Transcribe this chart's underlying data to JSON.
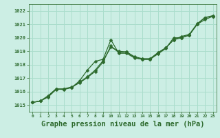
{
  "bg_color": "#cceee4",
  "grid_color": "#aaddcc",
  "line_color": "#2d6a2d",
  "marker_color": "#2d6a2d",
  "xlabel": "Graphe pression niveau de la mer (hPa)",
  "xlabel_fontsize": 7.5,
  "ylim": [
    1014.5,
    1022.5
  ],
  "xlim": [
    -0.5,
    23.5
  ],
  "yticks": [
    1015,
    1016,
    1017,
    1018,
    1019,
    1020,
    1021,
    1022
  ],
  "xticks": [
    0,
    1,
    2,
    3,
    4,
    5,
    6,
    7,
    8,
    9,
    10,
    11,
    12,
    13,
    14,
    15,
    16,
    17,
    18,
    19,
    20,
    21,
    22,
    23
  ],
  "series1_x": [
    0,
    1,
    2,
    3,
    4,
    5,
    6,
    7,
    8,
    9,
    10,
    11,
    12,
    13,
    14,
    15,
    16,
    17,
    18,
    19,
    20,
    21,
    22,
    23
  ],
  "series1_y": [
    1015.2,
    1015.3,
    1015.6,
    1016.15,
    1016.2,
    1016.35,
    1016.65,
    1017.05,
    1017.5,
    1018.2,
    1019.4,
    1018.9,
    1018.95,
    1018.55,
    1018.4,
    1018.4,
    1018.85,
    1019.25,
    1019.85,
    1020.0,
    1020.2,
    1021.0,
    1021.35,
    1021.6
  ],
  "series2_x": [
    0,
    1,
    2,
    3,
    4,
    5,
    6,
    7,
    8,
    9,
    10,
    11,
    12,
    13,
    14,
    15,
    16,
    17,
    18,
    19,
    20,
    21,
    22,
    23
  ],
  "series2_y": [
    1015.2,
    1015.3,
    1015.65,
    1016.2,
    1016.15,
    1016.3,
    1016.8,
    1017.6,
    1018.25,
    1018.4,
    1019.85,
    1018.85,
    1018.85,
    1018.5,
    1018.4,
    1018.4,
    1018.8,
    1019.2,
    1020.0,
    1020.0,
    1020.2,
    1021.0,
    1021.5,
    1021.6
  ],
  "series3_x": [
    0,
    1,
    2,
    3,
    4,
    5,
    6,
    7,
    8,
    9,
    10,
    11,
    12,
    13,
    14,
    15,
    16,
    17,
    18,
    19,
    20,
    21,
    22,
    23
  ],
  "series3_y": [
    1015.2,
    1015.3,
    1015.7,
    1016.2,
    1016.2,
    1016.3,
    1016.7,
    1017.1,
    1017.6,
    1018.3,
    1019.3,
    1019.0,
    1018.95,
    1018.6,
    1018.45,
    1018.45,
    1018.9,
    1019.25,
    1019.85,
    1020.1,
    1020.25,
    1021.05,
    1021.5,
    1021.65
  ],
  "figwidth": 3.2,
  "figheight": 2.0,
  "dpi": 100
}
